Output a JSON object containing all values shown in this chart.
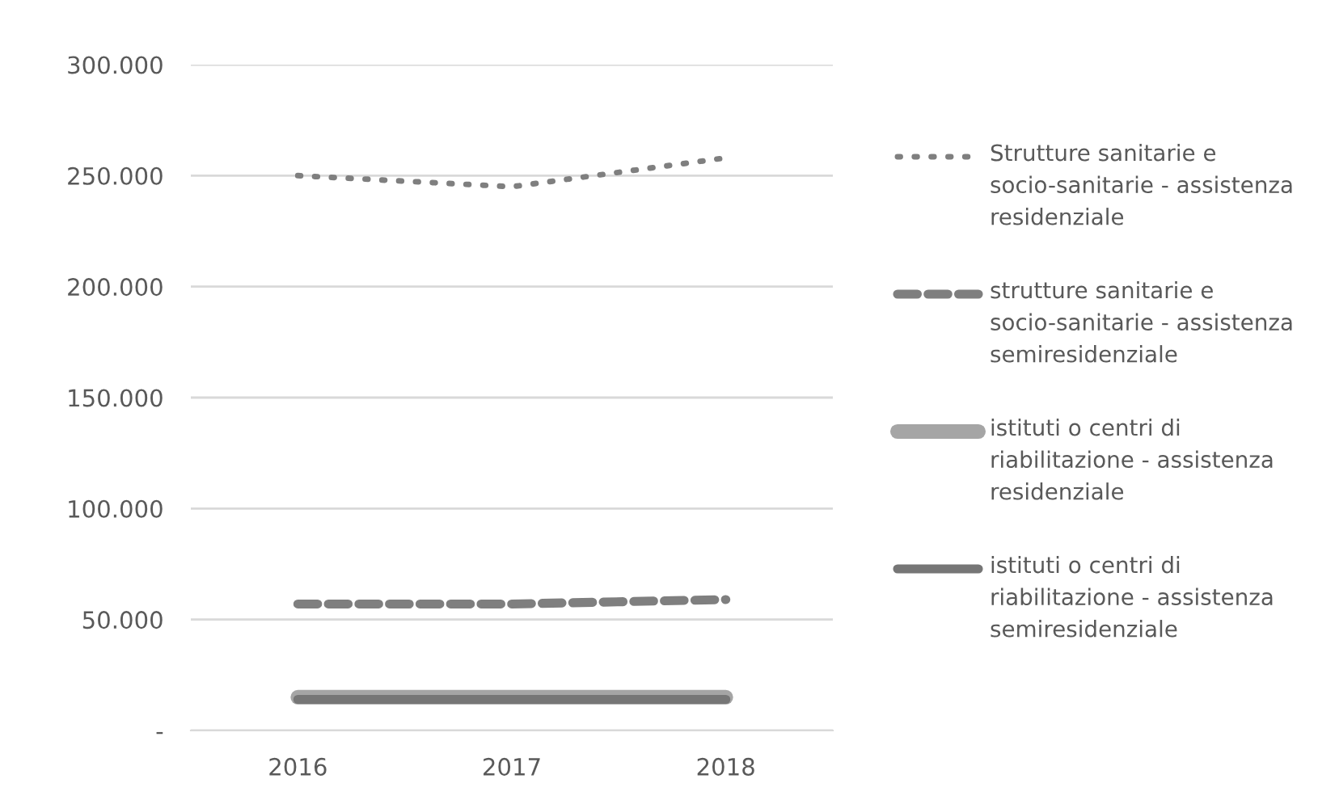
{
  "chart_data": {
    "type": "line",
    "categories": [
      "2016",
      "2017",
      "2018"
    ],
    "series": [
      {
        "name": "Strutture sanitarie e socio-sanitarie - assistenza residenziale",
        "color": "#7f7f7f",
        "line_style": "dotted",
        "values": [
          250000,
          245000,
          258000
        ]
      },
      {
        "name": "strutture sanitarie e socio-sanitarie - assistenza semiresidenziale",
        "color": "#7f7f7f",
        "line_style": "dashed",
        "values": [
          57000,
          57000,
          59000
        ]
      },
      {
        "name": "istituti o centri di riabilitazione - assistenza residenziale",
        "color": "#a5a5a5",
        "line_style": "solid",
        "values": [
          15000,
          15000,
          15000
        ]
      },
      {
        "name": "istituti o centri di riabilitazione - assistenza semiresidenziale",
        "color": "#767676",
        "line_style": "solid",
        "values": [
          14000,
          14000,
          14000
        ]
      }
    ],
    "ylim": [
      0,
      300000
    ],
    "yticks": [
      {
        "value": 0,
        "label": "-"
      },
      {
        "value": 50000,
        "label": "50.000"
      },
      {
        "value": 100000,
        "label": "100.000"
      },
      {
        "value": 150000,
        "label": "150.000"
      },
      {
        "value": 200000,
        "label": "200.000"
      },
      {
        "value": 250000,
        "label": "250.000"
      },
      {
        "value": 300000,
        "label": "300.000"
      }
    ],
    "grid": "y",
    "legend": "right",
    "marker": "none"
  }
}
